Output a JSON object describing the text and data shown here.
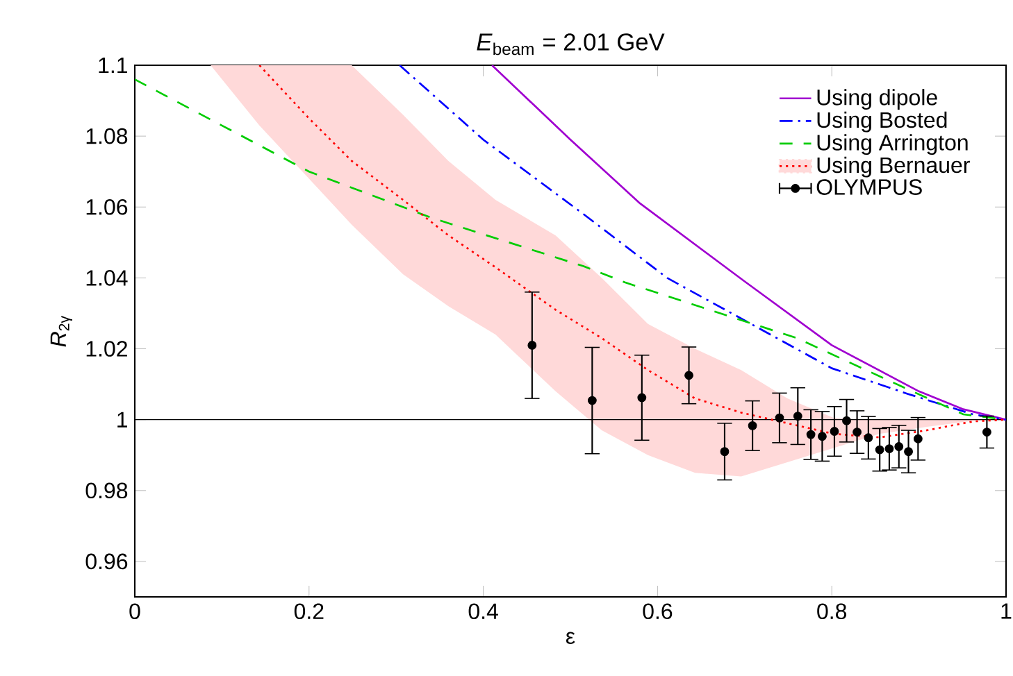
{
  "chart_data": {
    "type": "line",
    "title": "*E*$_{beam}$ = 2.01 GeV",
    "xlabel": "ε",
    "ylabel": "*R*$_{2γ}$",
    "xlim": [
      0,
      1
    ],
    "ylim": [
      0.95,
      1.1
    ],
    "xticks": [
      0,
      0.2,
      0.4,
      0.6,
      0.8,
      1
    ],
    "yticks": [
      0.96,
      0.98,
      1,
      1.02,
      1.04,
      1.06,
      1.08,
      1.1
    ],
    "legend": "top right",
    "ref_lines": [
      {
        "axis": "y",
        "value": 1,
        "color": "#000000"
      }
    ],
    "series": [
      {
        "name": "Using dipole",
        "color": "#a000d0",
        "line_style": "solid",
        "x": [
          0.41,
          0.5,
          0.58,
          0.7,
          0.8,
          0.9,
          0.95,
          1.0
        ],
        "values": [
          1.1,
          1.079,
          1.061,
          1.039,
          1.021,
          1.008,
          1.003,
          1.0
        ]
      },
      {
        "name": "Using Bosted",
        "color": "#0000ff",
        "line_style": "dashdot",
        "x": [
          0.304,
          0.4,
          0.515,
          0.611,
          0.7,
          0.8,
          0.887,
          0.962,
          1.0
        ],
        "values": [
          1.1,
          1.079,
          1.058,
          1.04,
          1.028,
          1.0145,
          1.0073,
          1.0015,
          1.0
        ]
      },
      {
        "name": "Using Arrington",
        "color": "#00cc00",
        "line_style": "dashed",
        "x": [
          0,
          0.1,
          0.2,
          0.34,
          0.515,
          0.563,
          0.76,
          0.887,
          0.951,
          1.0
        ],
        "values": [
          1.096,
          1.083,
          1.07,
          1.057,
          1.0433,
          1.0387,
          1.023,
          1.0086,
          1.0015,
          1.0
        ]
      },
      {
        "name": "Using Bernauer",
        "color": "#ff0000",
        "line_style": "dotted",
        "x": [
          0.087,
          0.143,
          0.2,
          0.249,
          0.308,
          0.36,
          0.414,
          0.483,
          0.536,
          0.589,
          0.643,
          0.696,
          0.749,
          0.802,
          0.855,
          0.909,
          0.962,
          1.0
        ],
        "values": [
          null,
          1.1,
          1.085,
          1.073,
          1.062,
          1.052,
          1.043,
          1.031,
          1.023,
          1.014,
          1.006,
          1.002,
          0.999,
          0.996,
          0.995,
          0.997,
          0.9995,
          1.0
        ],
        "upper": [
          1.1,
          1.1,
          1.1,
          1.1,
          1.086,
          1.073,
          1.062,
          1.052,
          1.04,
          1.027,
          1.02,
          1.014,
          1.006,
          1.0005,
          1.0,
          1.0,
          1.0,
          1.0
        ],
        "lower": [
          1.1,
          1.083,
          1.068,
          1.055,
          1.041,
          1.032,
          1.024,
          1.008,
          0.997,
          0.99,
          0.985,
          0.984,
          0.988,
          0.992,
          0.996,
          0.998,
          0.9997,
          1.0
        ]
      },
      {
        "name": "OLYMPUS",
        "type": "scatter",
        "color": "#000000",
        "marker": "circle",
        "x": [
          0.456,
          0.525,
          0.582,
          0.636,
          0.677,
          0.709,
          0.74,
          0.761,
          0.776,
          0.789,
          0.803,
          0.817,
          0.829,
          0.842,
          0.855,
          0.866,
          0.877,
          0.888,
          0.899,
          0.978
        ],
        "values": [
          1.021,
          1.0054,
          1.0062,
          1.0125,
          0.991,
          0.9983,
          1.0005,
          1.001,
          0.9958,
          0.9953,
          0.9967,
          0.9997,
          0.9965,
          0.9949,
          0.9915,
          0.9918,
          0.9924,
          0.991,
          0.9946,
          0.9965
        ],
        "errors": [
          0.015,
          0.015,
          0.012,
          0.008,
          0.008,
          0.007,
          0.007,
          0.008,
          0.007,
          0.007,
          0.007,
          0.006,
          0.006,
          0.006,
          0.006,
          0.006,
          0.006,
          0.006,
          0.006,
          0.0045
        ]
      }
    ]
  }
}
